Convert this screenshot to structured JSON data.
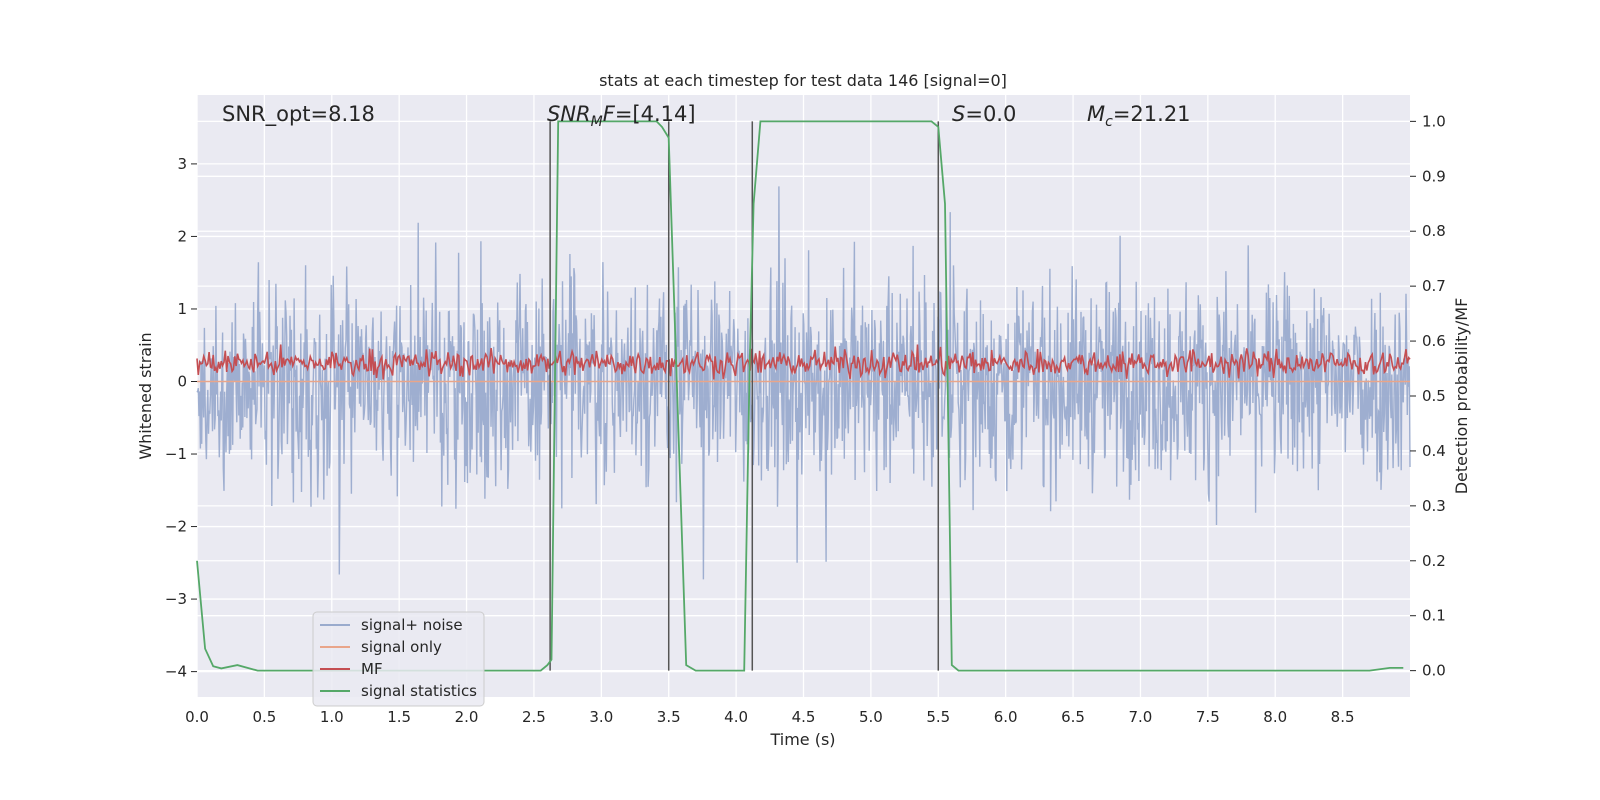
{
  "chart_data": {
    "type": "line",
    "title": "stats at each timestep for test data 146 [signal=0]",
    "xlabel": "Time (s)",
    "ylabel_left": "Whitened strain",
    "ylabel_right": "Detection probability/MF",
    "xlim": [
      0,
      9
    ],
    "ylim_left": [
      -4.35,
      3.95
    ],
    "ylim_right": [
      -0.048,
      1.048
    ],
    "xticks": [
      "0.0",
      "0.5",
      "1.0",
      "1.5",
      "2.0",
      "2.5",
      "3.0",
      "3.5",
      "4.0",
      "4.5",
      "5.0",
      "5.5",
      "6.0",
      "6.5",
      "7.0",
      "7.5",
      "8.0",
      "8.5"
    ],
    "yticks_left": [
      "3",
      "2",
      "1",
      "0",
      "−1",
      "−2",
      "−3",
      "−4"
    ],
    "yticks_right": [
      "1.0",
      "0.9",
      "0.8",
      "0.7",
      "0.6",
      "0.5",
      "0.4",
      "0.3",
      "0.2",
      "0.1",
      "0.0"
    ],
    "grid": true,
    "legend_position": "lower-left",
    "colors": {
      "background": "#eaeaf2",
      "noise": "#9aabcd",
      "signal": "#e9a58a",
      "mf": "#c44e52",
      "stats": "#55a868",
      "vline": "#555555"
    },
    "series": [
      {
        "name": "signal+ noise",
        "axis": "left",
        "style": "noise band, amplitude approx ±3.5",
        "mean": 0.0,
        "max_abs": 3.5
      },
      {
        "name": "signal only",
        "axis": "left",
        "values_constant": 0.0
      },
      {
        "name": "MF",
        "axis": "right",
        "style": "fluctuating",
        "mean": 0.56,
        "min": 0.53,
        "max": 0.62
      },
      {
        "name": "signal statistics",
        "axis": "right",
        "x": [
          0.0,
          0.06,
          0.12,
          0.18,
          0.3,
          0.45,
          1.0,
          2.0,
          2.55,
          2.6,
          2.63,
          2.68,
          2.75,
          3.0,
          3.3,
          3.41,
          3.45,
          3.5,
          3.63,
          3.7,
          4.0,
          4.06,
          4.1,
          4.13,
          4.18,
          4.25,
          5.0,
          5.45,
          5.5,
          5.55,
          5.6,
          5.65,
          6.0,
          8.0,
          8.7,
          8.85,
          8.95
        ],
        "y": [
          0.2,
          0.04,
          0.008,
          0.004,
          0.01,
          0.0,
          0.0,
          0.0,
          0.0,
          0.01,
          0.02,
          1.0,
          1.0,
          1.0,
          1.0,
          1.0,
          0.99,
          0.97,
          0.01,
          0.0,
          0.0,
          0.0,
          0.55,
          0.85,
          1.0,
          1.0,
          1.0,
          1.0,
          0.99,
          0.85,
          0.01,
          0.0,
          0.0,
          0.0,
          0.0,
          0.005,
          0.005
        ]
      }
    ],
    "vlines_x": [
      2.62,
      3.5,
      4.12,
      5.5
    ],
    "annotations": [
      {
        "id": "snr_opt",
        "label": "SNR_opt=8.18",
        "x": 0.2
      },
      {
        "id": "snr_mf",
        "prefix": "SNR",
        "sub": "M",
        "mid": "F",
        "suffix": "=[4.14]",
        "x": 2.62
      },
      {
        "id": "s",
        "prefix": "S",
        "suffix": "=0.0",
        "x": 5.6
      },
      {
        "id": "mc",
        "prefix": "M",
        "sub": "c",
        "suffix": "=21.21",
        "x": 6.6
      }
    ]
  }
}
